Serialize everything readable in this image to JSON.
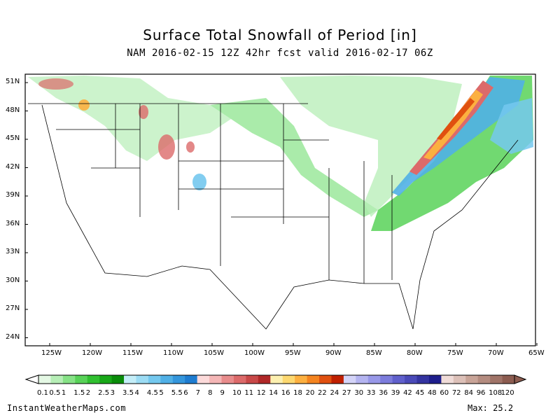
{
  "header": {
    "title": "Surface Total Snowfall of Period [in]",
    "subtitle": "NAM 2016-02-15 12Z 42hr fcst valid 2016-02-17 06Z"
  },
  "map": {
    "lat_labels": [
      "51N",
      "48N",
      "45N",
      "42N",
      "39N",
      "36N",
      "33N",
      "30N",
      "27N",
      "24N"
    ],
    "lon_labels": [
      "125W",
      "120W",
      "115W",
      "110W",
      "105W",
      "100W",
      "95W",
      "90W",
      "85W",
      "80W",
      "75W",
      "70W",
      "65W"
    ]
  },
  "legend": {
    "labels": [
      "0.1",
      "0.5",
      "1",
      "1.5",
      "2",
      "2.5",
      "3",
      "3.5",
      "4",
      "4.5",
      "5",
      "5.5",
      "6",
      "7",
      "8",
      "9",
      "10",
      "11",
      "12",
      "14",
      "16",
      "18",
      "20",
      "22",
      "24",
      "27",
      "30",
      "33",
      "36",
      "39",
      "42",
      "45",
      "48",
      "60",
      "72",
      "84",
      "96",
      "108",
      "120"
    ],
    "colors": [
      "#e4f8e4",
      "#b6eeb6",
      "#86e286",
      "#58d258",
      "#30c030",
      "#18a818",
      "#0a8c0a",
      "#c4eef8",
      "#9cdcf4",
      "#74c8ee",
      "#50b0e6",
      "#3496dc",
      "#1e7cd0",
      "#fcdada",
      "#f4b6b6",
      "#e88c8c",
      "#dc6a6a",
      "#c84848",
      "#b02828",
      "#fcf0b0",
      "#fcd870",
      "#fcb040",
      "#f48420",
      "#e05010",
      "#c02000",
      "#d4d4f8",
      "#b4b4f0",
      "#9898e8",
      "#7c7cdc",
      "#6060cc",
      "#4a4ab8",
      "#3434a0",
      "#1e1e8c",
      "#f0dcd8",
      "#dcc0b8",
      "#c8a498",
      "#b48c80",
      "#a07468",
      "#8c5c50"
    ]
  },
  "footer": {
    "site": "InstantWeatherMaps.com",
    "max_label": "Max:",
    "max_value": "25.2"
  }
}
